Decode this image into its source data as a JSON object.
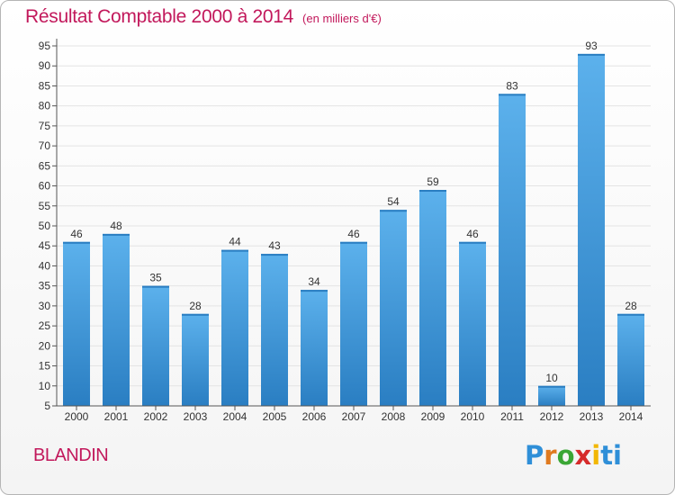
{
  "header": {
    "title": "Résultat Comptable 2000 à 2014",
    "subtitle": "(en milliers d'€)"
  },
  "footer": {
    "commune": "BLANDIN",
    "brand_letters": [
      "P",
      "r",
      "o",
      "x",
      "i",
      "ti"
    ]
  },
  "colors": {
    "title": "#c2185b",
    "bar_top": "#5cb1ec",
    "bar_bottom": "#2a7ec2",
    "grid": "#e4e4e4",
    "axis": "#555555"
  },
  "chart_data": {
    "type": "bar",
    "categories": [
      "2000",
      "2001",
      "2002",
      "2003",
      "2004",
      "2005",
      "2006",
      "2007",
      "2008",
      "2009",
      "2010",
      "2011",
      "2012",
      "2013",
      "2014"
    ],
    "values": [
      46,
      48,
      35,
      28,
      44,
      43,
      34,
      46,
      54,
      59,
      46,
      83,
      10,
      93,
      28
    ],
    "title": "Résultat Comptable 2000 à 2014",
    "subtitle": "(en milliers d'€)",
    "xlabel": "",
    "ylabel": "",
    "ylim": [
      5,
      95
    ],
    "yticks": [
      5,
      10,
      15,
      20,
      25,
      30,
      35,
      40,
      45,
      50,
      55,
      60,
      65,
      70,
      75,
      80,
      85,
      90,
      95
    ],
    "grid": true,
    "data_labels": true
  }
}
